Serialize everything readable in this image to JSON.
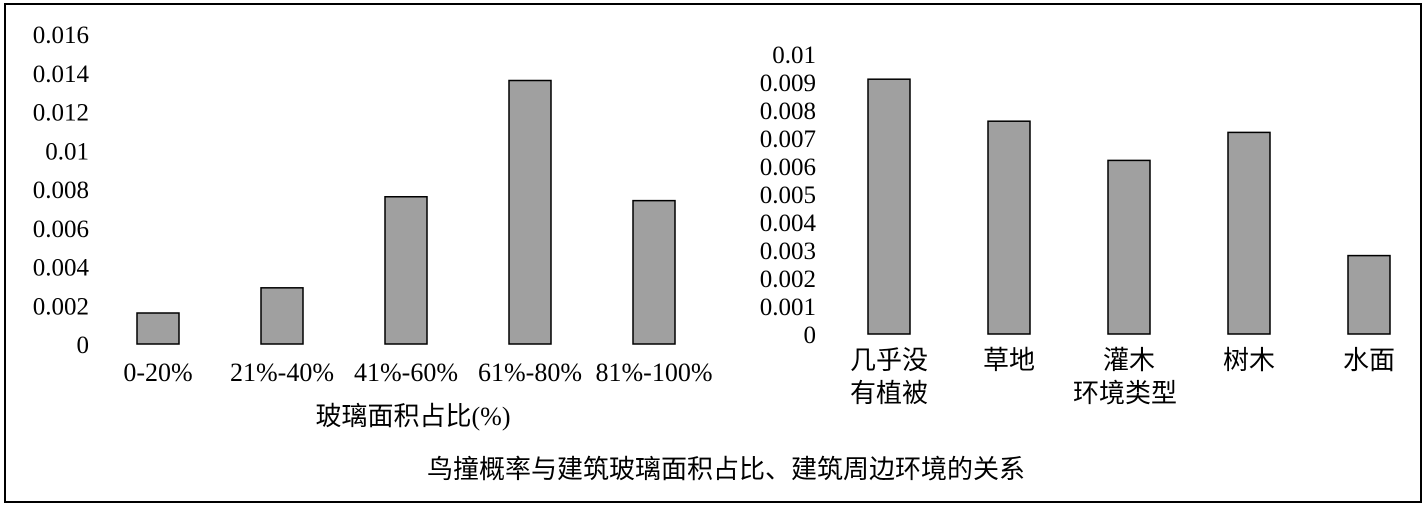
{
  "caption": "鸟撞概率与建筑玻璃面积占比、建筑周边环境的关系",
  "colors": {
    "bar_fill": "#a0a0a0",
    "bar_stroke": "#000000",
    "frame": "#000000",
    "background": "#ffffff"
  },
  "chart_data": [
    {
      "type": "bar",
      "title": "",
      "xlabel": "玻璃面积占比(%)",
      "ylabel": "",
      "categories": [
        "0-20%",
        "21%-40%",
        "41%-60%",
        "61%-80%",
        "81%-100%"
      ],
      "values": [
        0.0016,
        0.0029,
        0.0076,
        0.0136,
        0.0074
      ],
      "ylim": [
        0,
        0.016
      ],
      "yticks": [
        "0",
        "0.002",
        "0.004",
        "0.006",
        "0.008",
        "0.01",
        "0.012",
        "0.014",
        "0.016"
      ],
      "grid": false,
      "legend": "none"
    },
    {
      "type": "bar",
      "title": "",
      "xlabel": "环境类型",
      "ylabel": "",
      "categories": [
        [
          "几乎没",
          "有植被"
        ],
        [
          "草地"
        ],
        [
          "灌木"
        ],
        [
          "树木"
        ],
        [
          "水面"
        ]
      ],
      "values": [
        0.0091,
        0.0076,
        0.0062,
        0.0072,
        0.0028
      ],
      "ylim": [
        0,
        0.01
      ],
      "yticks": [
        "0",
        "0.001",
        "0.002",
        "0.003",
        "0.004",
        "0.005",
        "0.006",
        "0.007",
        "0.008",
        "0.009",
        "0.01"
      ],
      "grid": false,
      "legend": "none"
    }
  ]
}
